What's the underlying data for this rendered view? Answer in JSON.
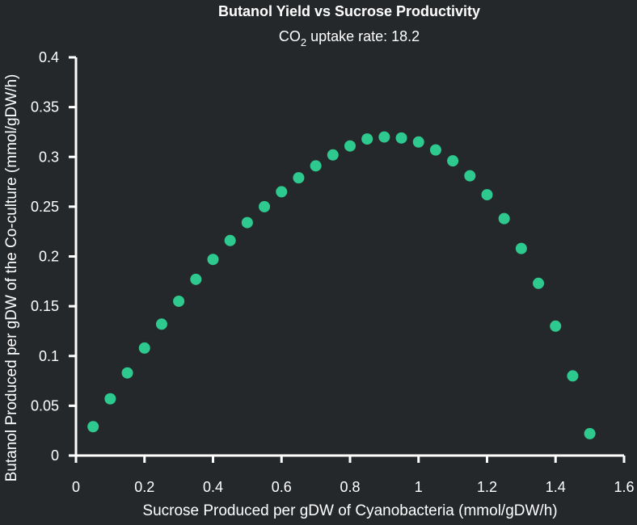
{
  "chart_data": {
    "type": "scatter",
    "title": "Butanol Yield vs Sucrose Productivity",
    "subtitle": {
      "prefix": "CO",
      "subscript": "2",
      "suffix": " uptake rate: 18.2"
    },
    "xlabel": "Sucrose Produced per gDW of Cyanobacteria (mmol/gDW/h)",
    "ylabel": "Butanol Produced per gDW of the Co-culture (mmol/gDW/h)",
    "xlim": [
      0,
      1.6
    ],
    "ylim": [
      0,
      0.4
    ],
    "x_ticks": [
      "0",
      "0.2",
      "0.4",
      "0.6",
      "0.8",
      "1",
      "1.2",
      "1.4",
      "1.6"
    ],
    "y_ticks": [
      "0",
      "0.05",
      "0.1",
      "0.15",
      "0.2",
      "0.25",
      "0.3",
      "0.35",
      "0.4"
    ],
    "grid": false,
    "marker_color": "#2ec98f",
    "background_color": "#25282b",
    "axis_color": "#ffffff",
    "points": [
      {
        "x": 0.05,
        "y": 0.029
      },
      {
        "x": 0.1,
        "y": 0.057
      },
      {
        "x": 0.15,
        "y": 0.083
      },
      {
        "x": 0.2,
        "y": 0.108
      },
      {
        "x": 0.25,
        "y": 0.132
      },
      {
        "x": 0.3,
        "y": 0.155
      },
      {
        "x": 0.35,
        "y": 0.177
      },
      {
        "x": 0.4,
        "y": 0.197
      },
      {
        "x": 0.45,
        "y": 0.216
      },
      {
        "x": 0.5,
        "y": 0.234
      },
      {
        "x": 0.55,
        "y": 0.25
      },
      {
        "x": 0.6,
        "y": 0.265
      },
      {
        "x": 0.65,
        "y": 0.279
      },
      {
        "x": 0.7,
        "y": 0.291
      },
      {
        "x": 0.75,
        "y": 0.302
      },
      {
        "x": 0.8,
        "y": 0.311
      },
      {
        "x": 0.85,
        "y": 0.318
      },
      {
        "x": 0.9,
        "y": 0.32
      },
      {
        "x": 0.95,
        "y": 0.319
      },
      {
        "x": 1.0,
        "y": 0.315
      },
      {
        "x": 1.05,
        "y": 0.307
      },
      {
        "x": 1.1,
        "y": 0.296
      },
      {
        "x": 1.15,
        "y": 0.281
      },
      {
        "x": 1.2,
        "y": 0.262
      },
      {
        "x": 1.25,
        "y": 0.238
      },
      {
        "x": 1.3,
        "y": 0.208
      },
      {
        "x": 1.35,
        "y": 0.173
      },
      {
        "x": 1.4,
        "y": 0.13
      },
      {
        "x": 1.45,
        "y": 0.08
      },
      {
        "x": 1.5,
        "y": 0.022
      }
    ]
  }
}
